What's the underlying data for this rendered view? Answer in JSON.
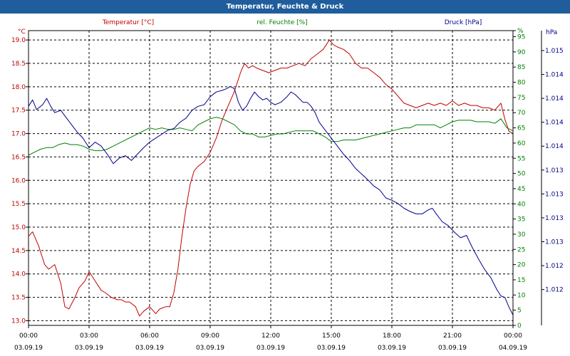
{
  "window": {
    "title": "Temperatur, Feuchte & Druck"
  },
  "colors": {
    "temperature": "#c00000",
    "humidity": "#008000",
    "pressure": "#00008b",
    "titlebar": "#1f5d9c"
  },
  "chart_data": {
    "type": "line",
    "title": "Temperatur, Feuchte & Druck",
    "legend": [
      "Temperatur [°C]",
      "rel. Feuchte [%]",
      "Druck [hPa]"
    ],
    "x_ticks": [
      {
        "time": "00:00",
        "date": "03.09.19"
      },
      {
        "time": "03:00",
        "date": "03.09.19"
      },
      {
        "time": "06:00",
        "date": "03.09.19"
      },
      {
        "time": "09:00",
        "date": "03.09.19"
      },
      {
        "time": "12:00",
        "date": "03.09.19"
      },
      {
        "time": "15:00",
        "date": "03.09.19"
      },
      {
        "time": "18:00",
        "date": "03.09.19"
      },
      {
        "time": "21:00",
        "date": "03.09.19"
      },
      {
        "time": "00:00",
        "date": "04.09.19"
      }
    ],
    "xlim": [
      0,
      24
    ],
    "axes": {
      "temperature": {
        "unit": "°C",
        "ylim": [
          12.9,
          19.2
        ],
        "ticks": [
          "19.0",
          "18.5",
          "18.0",
          "17.5",
          "17.0",
          "16.5",
          "16.0",
          "15.5",
          "15.0",
          "14.5",
          "14.0",
          "13.5",
          "13.0"
        ]
      },
      "humidity": {
        "unit": "%",
        "ylim": [
          0,
          97
        ],
        "ticks": [
          "%",
          "95",
          "90",
          "85",
          "80",
          "75",
          "70",
          "65",
          "60",
          "55",
          "50",
          "45",
          "40",
          "35",
          "30",
          "25",
          "20",
          "15",
          "10",
          "5",
          "0"
        ]
      },
      "pressure": {
        "unit": "hPa",
        "ylim": [
          1011.75,
          1015.45
        ],
        "ticks": [
          "1.015",
          "1.014",
          "1.014",
          "1.014",
          "1.014",
          "1.013",
          "1.013",
          "1.013",
          "1.013",
          "1.012",
          "1.012"
        ]
      }
    },
    "series": [
      {
        "name": "Temperatur [°C]",
        "axis": "temperature",
        "x": [
          0,
          0.2,
          0.5,
          0.8,
          1.0,
          1.3,
          1.6,
          1.8,
          2.0,
          2.3,
          2.5,
          2.8,
          3.0,
          3.3,
          3.6,
          3.8,
          4.1,
          4.4,
          4.6,
          4.8,
          5.0,
          5.3,
          5.5,
          5.7,
          6.0,
          6.3,
          6.5,
          6.8,
          7.0,
          7.2,
          7.4,
          7.6,
          7.8,
          8.0,
          8.2,
          8.4,
          8.7,
          9.0,
          9.3,
          9.6,
          9.9,
          10.2,
          10.5,
          10.7,
          10.9,
          11.1,
          11.3,
          11.6,
          11.9,
          12.2,
          12.5,
          12.8,
          13.1,
          13.4,
          13.7,
          14.0,
          14.3,
          14.6,
          14.9,
          15.1,
          15.3,
          15.6,
          15.9,
          16.2,
          16.5,
          16.8,
          17.1,
          17.4,
          17.7,
          18.0,
          18.3,
          18.6,
          18.9,
          19.2,
          19.5,
          19.8,
          20.1,
          20.4,
          20.7,
          21.0,
          21.3,
          21.6,
          21.9,
          22.2,
          22.5,
          22.8,
          23.1,
          23.4,
          23.6,
          23.8,
          24.0
        ],
        "y": [
          14.8,
          14.9,
          14.6,
          14.2,
          14.1,
          14.2,
          13.8,
          13.3,
          13.25,
          13.5,
          13.7,
          13.85,
          14.05,
          13.85,
          13.65,
          13.6,
          13.5,
          13.45,
          13.45,
          13.4,
          13.4,
          13.3,
          13.1,
          13.2,
          13.3,
          13.15,
          13.25,
          13.3,
          13.3,
          13.6,
          14.1,
          14.8,
          15.4,
          15.9,
          16.2,
          16.3,
          16.4,
          16.6,
          16.9,
          17.3,
          17.6,
          17.9,
          18.3,
          18.5,
          18.4,
          18.45,
          18.4,
          18.35,
          18.3,
          18.35,
          18.4,
          18.4,
          18.45,
          18.5,
          18.45,
          18.6,
          18.7,
          18.8,
          19.0,
          18.9,
          18.85,
          18.8,
          18.7,
          18.5,
          18.4,
          18.4,
          18.3,
          18.2,
          18.05,
          17.95,
          17.8,
          17.65,
          17.6,
          17.55,
          17.6,
          17.65,
          17.6,
          17.65,
          17.6,
          17.7,
          17.6,
          17.65,
          17.6,
          17.6,
          17.55,
          17.55,
          17.5,
          17.65,
          17.3,
          17.05,
          17.0
        ]
      },
      {
        "name": "rel. Feuchte [%]",
        "axis": "humidity",
        "x": [
          0,
          0.3,
          0.6,
          0.9,
          1.2,
          1.5,
          1.8,
          2.1,
          2.4,
          2.7,
          3.0,
          3.3,
          3.6,
          3.9,
          4.2,
          4.5,
          4.8,
          5.1,
          5.4,
          5.7,
          6.0,
          6.3,
          6.6,
          6.9,
          7.2,
          7.5,
          7.8,
          8.1,
          8.4,
          8.7,
          9.0,
          9.3,
          9.6,
          9.9,
          10.2,
          10.5,
          10.8,
          11.1,
          11.4,
          11.7,
          12.0,
          12.3,
          12.6,
          12.9,
          13.2,
          13.5,
          13.8,
          14.1,
          14.4,
          14.7,
          15.0,
          15.3,
          15.6,
          15.9,
          16.2,
          16.5,
          16.8,
          17.1,
          17.4,
          17.7,
          18.0,
          18.3,
          18.6,
          18.9,
          19.2,
          19.5,
          19.8,
          20.1,
          20.4,
          20.7,
          21.0,
          21.3,
          21.6,
          21.9,
          22.2,
          22.5,
          22.8,
          23.1,
          23.4,
          23.7,
          24.0
        ],
        "y": [
          56,
          57,
          58,
          58.5,
          58.5,
          59.5,
          60,
          59.5,
          59.5,
          59,
          58,
          57.5,
          57.5,
          58,
          59,
          60,
          61,
          62,
          63,
          64,
          65,
          64.5,
          65,
          64.5,
          64.5,
          65,
          64.5,
          64,
          66,
          67,
          68,
          68.5,
          68,
          67,
          66,
          64,
          63,
          63,
          62,
          62,
          62.5,
          63,
          63,
          63.5,
          64,
          64,
          64,
          64,
          63,
          62,
          60.5,
          60.5,
          61,
          61,
          61,
          61.5,
          62,
          62.5,
          63,
          63.5,
          64,
          64.5,
          65,
          65,
          66,
          66,
          66,
          66,
          65,
          66,
          67,
          67.5,
          67.5,
          67.5,
          67,
          67,
          67,
          66.5,
          68,
          65,
          64
        ]
      },
      {
        "name": "Druck [hPa]",
        "axis": "pressure",
        "x": [
          0,
          0.2,
          0.4,
          0.7,
          0.9,
          1.1,
          1.3,
          1.6,
          1.8,
          2.1,
          2.4,
          2.7,
          3.0,
          3.3,
          3.6,
          3.9,
          4.2,
          4.5,
          4.8,
          5.1,
          5.4,
          5.7,
          6.0,
          6.3,
          6.6,
          6.9,
          7.2,
          7.5,
          7.8,
          8.1,
          8.4,
          8.7,
          9.0,
          9.3,
          9.6,
          9.8,
          10.0,
          10.2,
          10.4,
          10.6,
          10.8,
          11.0,
          11.2,
          11.4,
          11.6,
          11.8,
          12.0,
          12.2,
          12.5,
          12.8,
          13.0,
          13.2,
          13.4,
          13.6,
          13.8,
          14.0,
          14.2,
          14.4,
          14.7,
          15.0,
          15.3,
          15.6,
          15.9,
          16.2,
          16.5,
          16.8,
          17.1,
          17.4,
          17.7,
          18.0,
          18.3,
          18.6,
          18.9,
          19.2,
          19.5,
          19.8,
          20.0,
          20.2,
          20.5,
          20.8,
          21.1,
          21.4,
          21.7,
          22.0,
          22.3,
          22.6,
          22.9,
          23.2,
          23.4,
          23.6,
          23.8,
          24.0
        ],
        "y": [
          1014.5,
          1014.58,
          1014.46,
          1014.52,
          1014.6,
          1014.5,
          1014.42,
          1014.45,
          1014.38,
          1014.28,
          1014.18,
          1014.1,
          1013.98,
          1014.05,
          1014.0,
          1013.9,
          1013.78,
          1013.85,
          1013.88,
          1013.82,
          1013.9,
          1013.98,
          1014.05,
          1014.1,
          1014.15,
          1014.2,
          1014.22,
          1014.3,
          1014.35,
          1014.45,
          1014.5,
          1014.52,
          1014.62,
          1014.68,
          1014.7,
          1014.72,
          1014.75,
          1014.72,
          1014.55,
          1014.45,
          1014.5,
          1014.6,
          1014.68,
          1014.62,
          1014.58,
          1014.6,
          1014.55,
          1014.52,
          1014.55,
          1014.62,
          1014.68,
          1014.65,
          1014.6,
          1014.55,
          1014.55,
          1014.5,
          1014.42,
          1014.3,
          1014.2,
          1014.1,
          1014.0,
          1013.9,
          1013.82,
          1013.72,
          1013.65,
          1013.58,
          1013.5,
          1013.45,
          1013.35,
          1013.32,
          1013.28,
          1013.22,
          1013.18,
          1013.15,
          1013.15,
          1013.2,
          1013.22,
          1013.15,
          1013.05,
          1013.0,
          1012.92,
          1012.85,
          1012.88,
          1012.72,
          1012.58,
          1012.45,
          1012.35,
          1012.2,
          1012.12,
          1012.1,
          1011.98,
          1011.88
        ]
      }
    ]
  }
}
